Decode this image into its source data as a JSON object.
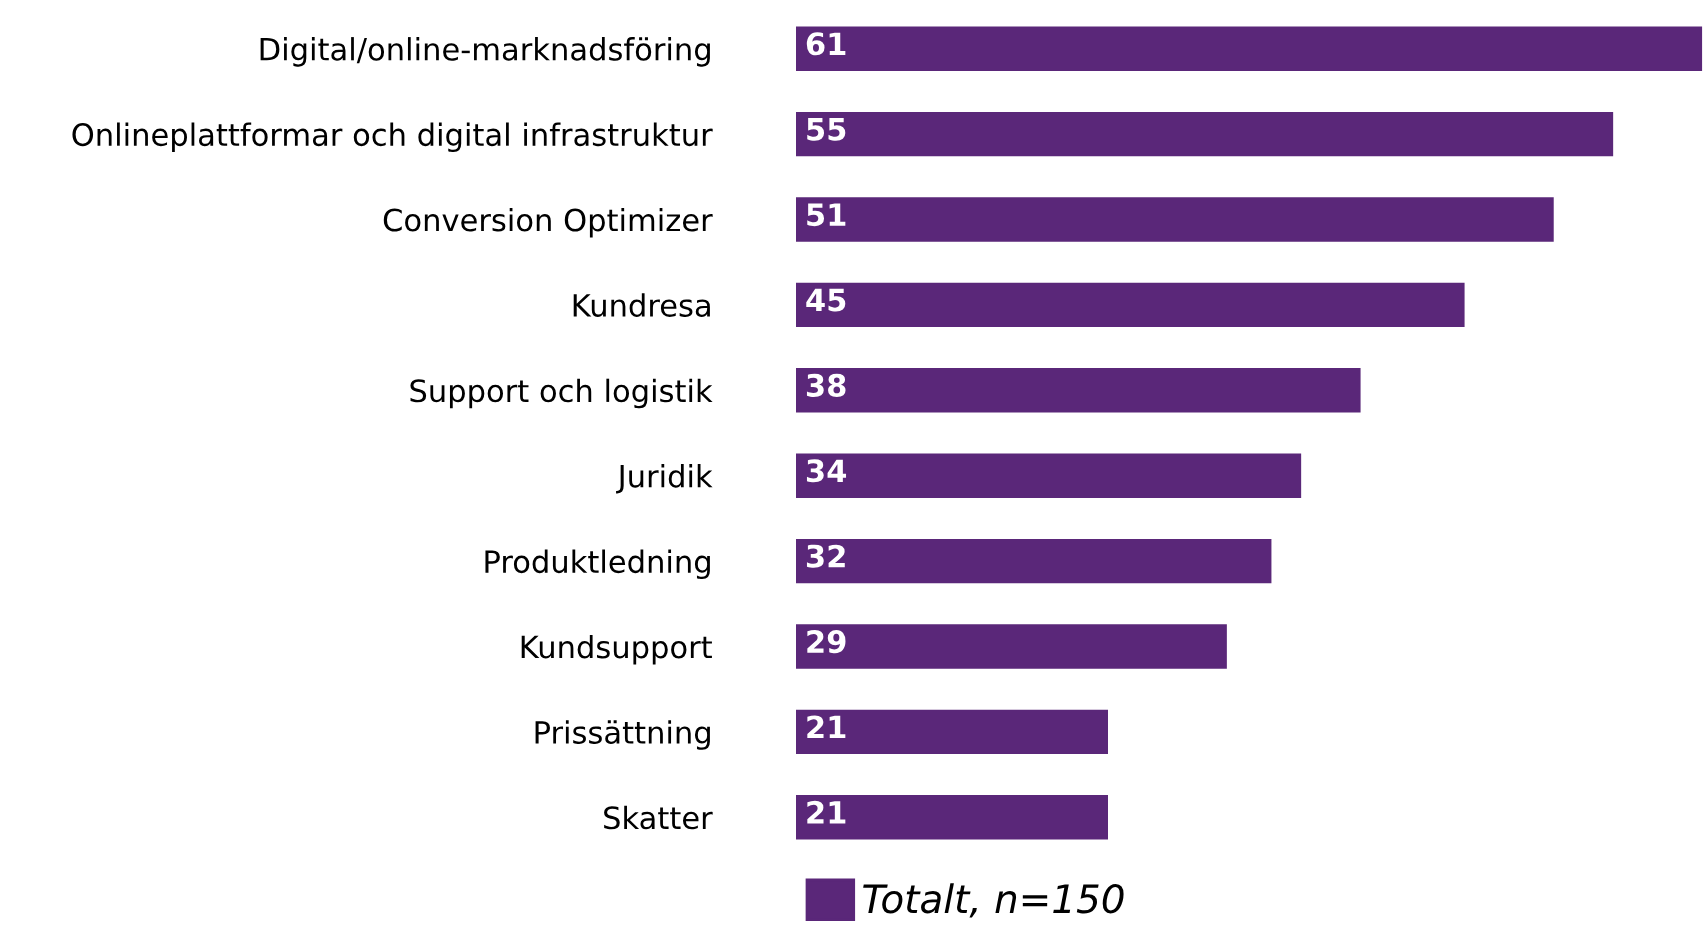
{
  "chart_data": {
    "type": "bar",
    "orientation": "horizontal",
    "categories": [
      "Digital/online-marknadsföring",
      "Onlineplattformar och digital infrastruktur",
      "Conversion Optimizer",
      "Kundresa",
      "Support och logistik",
      "Juridik",
      "Produktledning",
      "Kundsupport",
      "Prissättning",
      "Skatter"
    ],
    "series": [
      {
        "name": "Totalt, n=150",
        "color": "#5a2779",
        "values": [
          61,
          55,
          51,
          45,
          38,
          34,
          32,
          29,
          21,
          21
        ]
      }
    ],
    "data_labels": true,
    "legend": "bottom",
    "grid": false,
    "tick_labels": "y"
  }
}
